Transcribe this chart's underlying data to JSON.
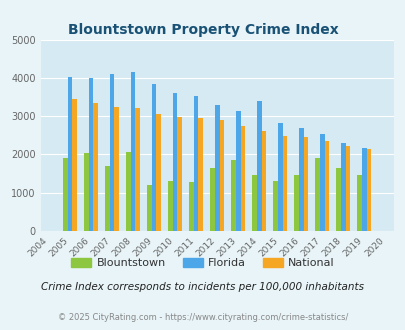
{
  "title": "Blountstown Property Crime Index",
  "years": [
    2004,
    2005,
    2006,
    2007,
    2008,
    2009,
    2010,
    2011,
    2012,
    2013,
    2014,
    2015,
    2016,
    2017,
    2018,
    2019,
    2020
  ],
  "blountstown": [
    null,
    1900,
    2050,
    1700,
    2075,
    1200,
    1300,
    1275,
    1650,
    1850,
    1450,
    1300,
    1450,
    1900,
    1650,
    1450,
    null
  ],
  "florida": [
    null,
    4025,
    4000,
    4100,
    4150,
    3850,
    3600,
    3525,
    3300,
    3125,
    3400,
    2825,
    2700,
    2525,
    2300,
    2175,
    null
  ],
  "national": [
    null,
    3450,
    3350,
    3250,
    3225,
    3050,
    2975,
    2950,
    2900,
    2750,
    2600,
    2475,
    2450,
    2350,
    2225,
    2150,
    null
  ],
  "bar_colors": {
    "blountstown": "#8dc63f",
    "florida": "#4da6e8",
    "national": "#f5a623"
  },
  "ylim": [
    0,
    5000
  ],
  "yticks": [
    0,
    1000,
    2000,
    3000,
    4000,
    5000
  ],
  "background_color": "#e8f4f8",
  "plot_bg": "#d6eaf3",
  "title_color": "#1a5276",
  "footer1": "Crime Index corresponds to incidents per 100,000 inhabitants",
  "footer2": "© 2025 CityRating.com - https://www.cityrating.com/crime-statistics/",
  "legend_labels": [
    "Blountstown",
    "Florida",
    "National"
  ],
  "bar_width": 0.22
}
